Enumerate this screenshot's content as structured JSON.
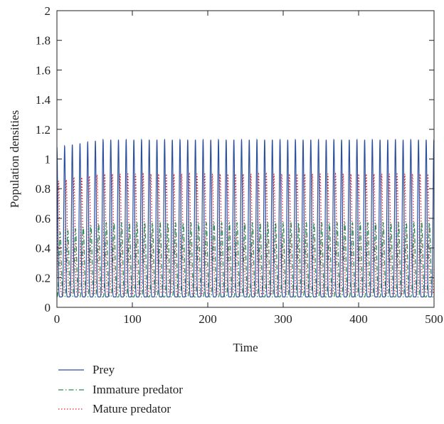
{
  "chart_data": {
    "type": "line",
    "title": "",
    "xlabel": "Time",
    "ylabel": "Population densities",
    "xlim": [
      0,
      500
    ],
    "ylim": [
      0,
      2
    ],
    "xticks": [
      0,
      100,
      200,
      300,
      400,
      500
    ],
    "yticks": [
      0,
      0.2,
      0.4,
      0.6,
      0.8,
      1,
      1.2,
      1.4,
      1.6,
      1.8,
      2
    ],
    "xtick_labels": [
      "0",
      "100",
      "200",
      "300",
      "400",
      "500"
    ],
    "ytick_labels": [
      "0",
      "0.2",
      "0.4",
      "0.6",
      "0.8",
      "1",
      "1.2",
      "1.4",
      "1.6",
      "1.8",
      "2"
    ],
    "grid": false,
    "legend_position": "bottom",
    "oscillation_period": 10.2,
    "series": [
      {
        "name": "Prey",
        "style": "solid",
        "color": "#2b4f9e",
        "min": 0.07,
        "max": 1.13,
        "initial_max": 1.08
      },
      {
        "name": "Immature predator",
        "style": "dash-dot",
        "color": "#2e8b57",
        "min": 0.07,
        "max": 0.57,
        "initial_max": 0.5
      },
      {
        "name": "Mature predator",
        "style": "dotted",
        "color": "#e0202a",
        "min": 0.09,
        "max": 0.9,
        "initial_max": 0.85
      }
    ]
  }
}
